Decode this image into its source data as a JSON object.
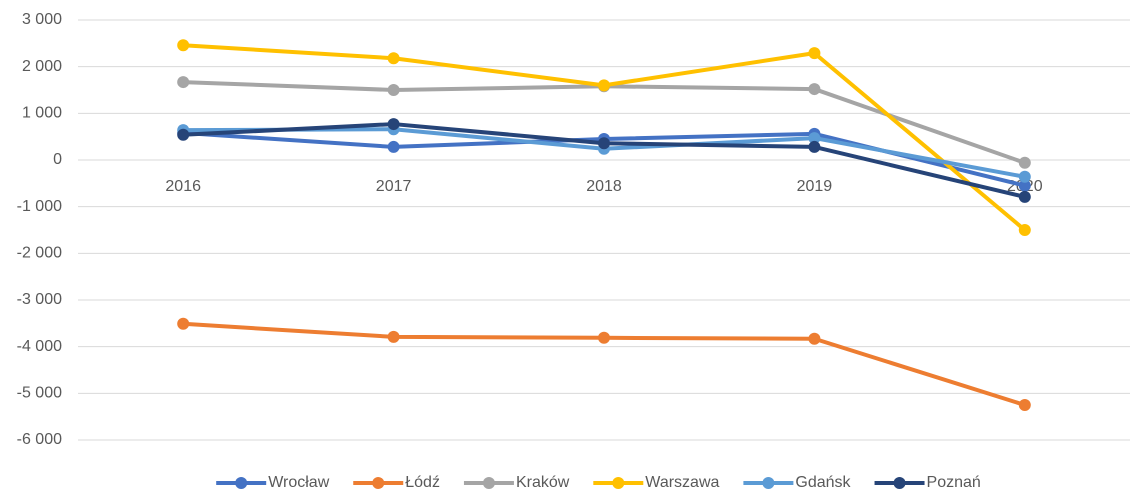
{
  "chart_data": {
    "type": "line",
    "categories": [
      "2016",
      "2017",
      "2018",
      "2019",
      "2020"
    ],
    "series": [
      {
        "name": "Wrocław",
        "color": "#4472c4",
        "values": [
          580,
          280,
          450,
          560,
          -550
        ]
      },
      {
        "name": "Łódź",
        "color": "#ed7d31",
        "values": [
          -3510,
          -3790,
          -3810,
          -3830,
          -5250
        ]
      },
      {
        "name": "Kraków",
        "color": "#a5a5a5",
        "values": [
          1670,
          1500,
          1580,
          1520,
          -60
        ]
      },
      {
        "name": "Warszawa",
        "color": "#ffc000",
        "values": [
          2460,
          2180,
          1600,
          2290,
          -1500
        ]
      },
      {
        "name": "Gdańsk",
        "color": "#5b9bd5",
        "values": [
          640,
          660,
          240,
          470,
          -360
        ]
      },
      {
        "name": "Poznań",
        "color": "#264478",
        "values": [
          540,
          770,
          360,
          280,
          -790
        ]
      }
    ],
    "ylim": [
      -6000,
      3000
    ],
    "yticks": [
      {
        "value": -6000,
        "label": "-6 000"
      },
      {
        "value": -5000,
        "label": "-5 000"
      },
      {
        "value": -4000,
        "label": "-4 000"
      },
      {
        "value": -3000,
        "label": "-3 000"
      },
      {
        "value": -2000,
        "label": "-2 000"
      },
      {
        "value": -1000,
        "label": "-1 000"
      },
      0,
      {
        "value": 1000,
        "label": "1 000"
      },
      {
        "value": 2000,
        "label": "2 000"
      },
      {
        "value": 3000,
        "label": "3 000"
      }
    ],
    "grid": true,
    "legend": "bottom"
  }
}
